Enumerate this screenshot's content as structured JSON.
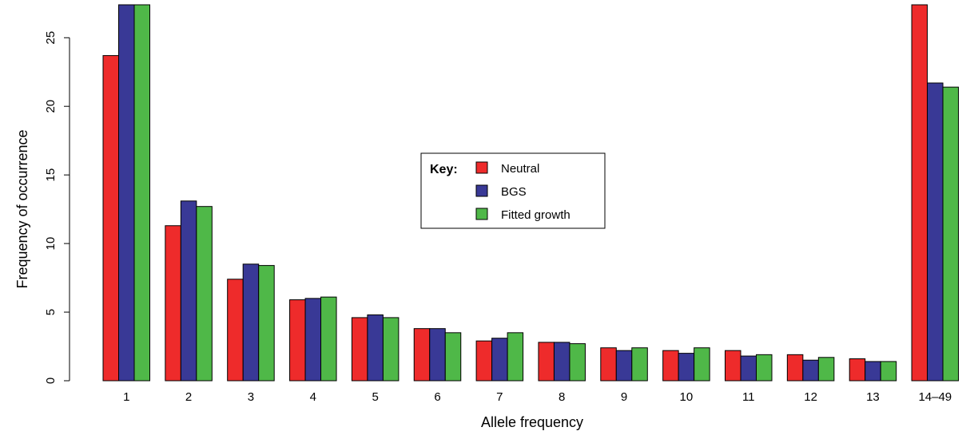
{
  "chart_data": {
    "type": "bar",
    "title": "",
    "xlabel": "Allele frequency",
    "ylabel": "Frequency of occurrence",
    "categories": [
      "1",
      "2",
      "3",
      "4",
      "5",
      "6",
      "7",
      "8",
      "9",
      "10",
      "11",
      "12",
      "13",
      "14–49"
    ],
    "series": [
      {
        "name": "Neutral",
        "color": "#ee2b2b",
        "values": [
          23.7,
          11.3,
          7.4,
          5.9,
          4.6,
          3.8,
          2.9,
          2.8,
          2.4,
          2.2,
          2.2,
          1.9,
          1.6,
          27.4
        ]
      },
      {
        "name": "BGS",
        "color": "#393996",
        "values": [
          27.4,
          13.1,
          8.5,
          6.0,
          4.8,
          3.8,
          3.1,
          2.8,
          2.2,
          2.0,
          1.8,
          1.5,
          1.4,
          21.7
        ]
      },
      {
        "name": "Fitted growth",
        "color": "#4fb848",
        "values": [
          27.4,
          12.7,
          8.4,
          6.1,
          4.6,
          3.5,
          3.5,
          2.7,
          2.4,
          2.4,
          1.9,
          1.7,
          1.4,
          21.4
        ]
      }
    ],
    "ylim": [
      0,
      27.4
    ],
    "yticks": [
      0,
      5,
      10,
      15,
      20,
      25
    ],
    "grid": false,
    "legend": {
      "title": "Key:",
      "placement": "center"
    }
  }
}
